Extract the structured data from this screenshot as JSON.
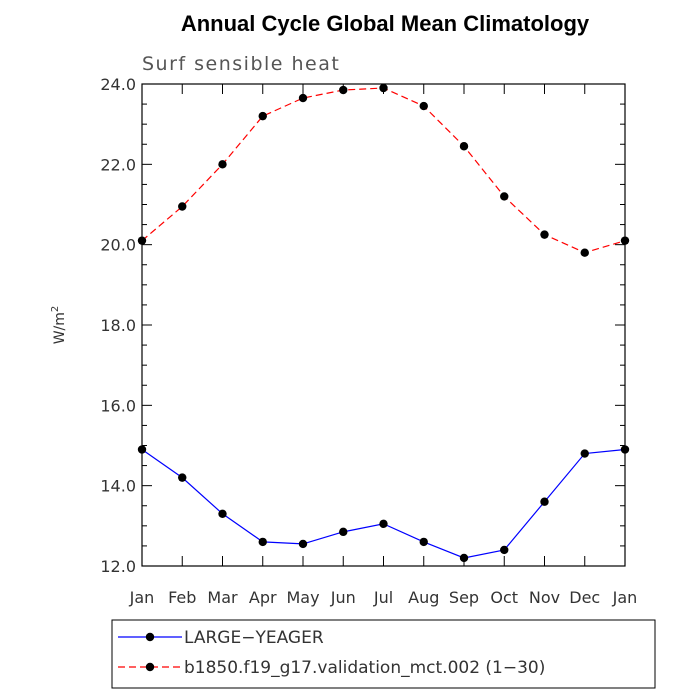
{
  "chart_data": {
    "type": "line",
    "title": "Annual Cycle Global Mean Climatology",
    "subtitle": "Surf sensible heat",
    "ylabel": "W/m",
    "ylabel_superscript": "2",
    "xlabel": "",
    "categories": [
      "Jan",
      "Feb",
      "Mar",
      "Apr",
      "May",
      "Jun",
      "Jul",
      "Aug",
      "Sep",
      "Oct",
      "Nov",
      "Dec",
      "Jan"
    ],
    "ylim": [
      12.0,
      24.0
    ],
    "yticks": [
      "12.0",
      "14.0",
      "16.0",
      "18.0",
      "20.0",
      "22.0",
      "24.0"
    ],
    "grid": false,
    "legend_position": "bottom",
    "series": [
      {
        "name": "LARGE−YEAGER",
        "color": "#0000ff",
        "style": "solid",
        "values": [
          14.9,
          14.2,
          13.3,
          12.6,
          12.55,
          12.85,
          13.05,
          12.6,
          12.2,
          12.4,
          13.6,
          14.8,
          14.9
        ]
      },
      {
        "name": "b1850.f19_g17.validation_mct.002 (1−30)",
        "color": "#ff0000",
        "style": "dashed",
        "values": [
          20.1,
          20.95,
          22.0,
          23.2,
          23.65,
          23.85,
          23.9,
          23.45,
          22.45,
          21.2,
          20.25,
          19.8,
          20.1
        ]
      }
    ]
  }
}
